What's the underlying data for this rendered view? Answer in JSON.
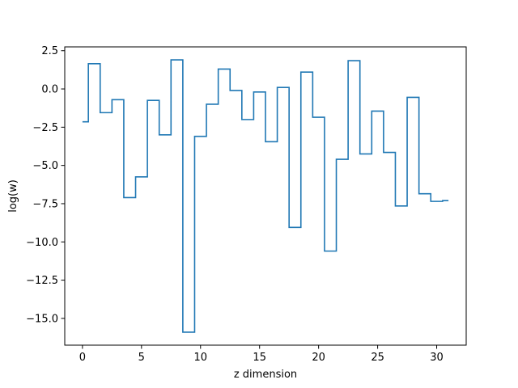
{
  "chart_data": {
    "type": "line",
    "drawstyle": "steps-mid",
    "title": "",
    "xlabel": "z dimension",
    "ylabel": "log(w)",
    "xlim": [
      -1.5,
      32.5
    ],
    "ylim": [
      -16.75,
      2.75
    ],
    "grid": false,
    "legend": "none",
    "xticks": [
      0,
      5,
      10,
      15,
      20,
      25,
      30
    ],
    "yticks": [
      2.5,
      0.0,
      -2.5,
      -5.0,
      -7.5,
      -10.0,
      -12.5,
      -15.0
    ],
    "series": [
      {
        "name": "",
        "color": "#1f77b4",
        "x": [
          0,
          1,
          2,
          3,
          4,
          5,
          6,
          7,
          8,
          9,
          10,
          11,
          12,
          13,
          14,
          15,
          16,
          17,
          18,
          19,
          20,
          21,
          22,
          23,
          24,
          25,
          26,
          27,
          28,
          29,
          30,
          31
        ],
        "y": [
          -2.15,
          1.65,
          -1.55,
          -0.7,
          -7.1,
          -5.75,
          -0.75,
          -3.0,
          1.9,
          -15.9,
          -3.1,
          -1.0,
          1.3,
          -0.1,
          -2.0,
          -0.2,
          -3.45,
          0.1,
          -9.05,
          1.1,
          -1.85,
          -10.6,
          -4.6,
          1.85,
          -4.25,
          -1.45,
          -4.15,
          -7.65,
          -0.55,
          -6.85,
          -7.35,
          -7.3
        ]
      }
    ]
  }
}
